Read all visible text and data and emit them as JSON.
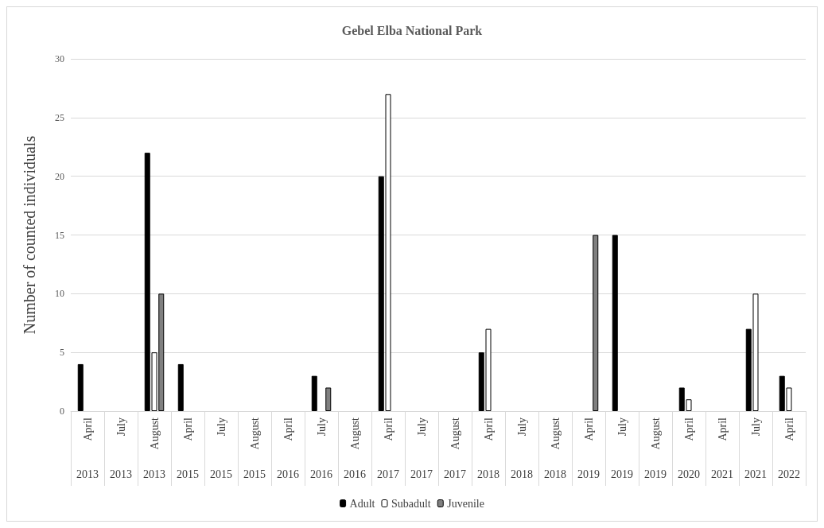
{
  "chart_data": {
    "type": "bar",
    "title": "Gebel Elba National Park",
    "ylabel": "Number of counted individuals",
    "categories": [
      "April 2013",
      "July 2013",
      "August 2013",
      "April 2015",
      "July 2015",
      "August 2015",
      "April 2016",
      "July 2016",
      "August 2016",
      "April 2017",
      "July 2017",
      "August 2017",
      "April 2018",
      "July 2018",
      "August 2018",
      "April 2019",
      "July 2019",
      "August 2019",
      "April 2020",
      "April 2021",
      "July 2021",
      "April 2022"
    ],
    "series": [
      {
        "name": "Adult",
        "color": "#000000",
        "values": [
          4,
          0,
          22,
          4,
          0,
          0,
          0,
          3,
          0,
          20,
          0,
          0,
          5,
          0,
          0,
          0,
          15,
          0,
          2,
          0,
          7,
          3
        ]
      },
      {
        "name": "Subadult",
        "color": "#ffffff",
        "values": [
          0,
          0,
          5,
          0,
          0,
          0,
          0,
          0,
          0,
          27,
          0,
          0,
          7,
          0,
          0,
          0,
          0,
          0,
          1,
          0,
          10,
          2
        ]
      },
      {
        "name": "Juvenile",
        "color": "#808080",
        "values": [
          0,
          0,
          10,
          0,
          0,
          0,
          0,
          2,
          0,
          0,
          0,
          0,
          0,
          0,
          0,
          15,
          0,
          0,
          0,
          0,
          0,
          0
        ]
      }
    ],
    "ylim": [
      0,
      30
    ],
    "yticks": [
      0,
      5,
      10,
      15,
      20,
      25,
      30
    ],
    "grid": "y",
    "legend": "bottom"
  }
}
